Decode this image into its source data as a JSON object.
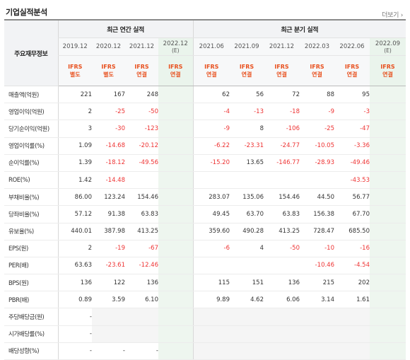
{
  "title": "기업실적분석",
  "more_link": "더보기",
  "more_icon": "chevron-right-icon",
  "row_header": "주요재무정보",
  "annual_header": "최근 연간 실적",
  "quarter_header": "최근 분기 실적",
  "annual_periods": [
    {
      "period": "2019.12",
      "ifrs": "IFRS",
      "basis": "별도",
      "estimate": false
    },
    {
      "period": "2020.12",
      "ifrs": "IFRS",
      "basis": "별도",
      "estimate": false
    },
    {
      "period": "2021.12",
      "ifrs": "IFRS",
      "basis": "연결",
      "estimate": false
    },
    {
      "period": "2022.12",
      "est_label": "(E)",
      "ifrs": "IFRS",
      "basis": "연결",
      "estimate": true
    }
  ],
  "quarter_periods": [
    {
      "period": "2021.06",
      "ifrs": "IFRS",
      "basis": "연결",
      "estimate": false
    },
    {
      "period": "2021.09",
      "ifrs": "IFRS",
      "basis": "연결",
      "estimate": false
    },
    {
      "period": "2021.12",
      "ifrs": "IFRS",
      "basis": "연결",
      "estimate": false
    },
    {
      "period": "2022.03",
      "ifrs": "IFRS",
      "basis": "연결",
      "estimate": false
    },
    {
      "period": "2022.06",
      "ifrs": "IFRS",
      "basis": "연결",
      "estimate": false
    },
    {
      "period": "2022.09",
      "est_label": "(E)",
      "ifrs": "IFRS",
      "basis": "연결",
      "estimate": true
    }
  ],
  "colors": {
    "negative": "#e33333",
    "ifrs": "#e8501e",
    "estimate_bg": "#eef6ef"
  },
  "rows": [
    {
      "label": "매출액(억원)",
      "annual": [
        "221",
        "167",
        "248",
        ""
      ],
      "quarter": [
        "62",
        "56",
        "72",
        "88",
        "95",
        ""
      ]
    },
    {
      "label": "영업이익(억원)",
      "annual": [
        "2",
        "-25",
        "-50",
        ""
      ],
      "quarter": [
        "-4",
        "-13",
        "-18",
        "-9",
        "-3",
        ""
      ]
    },
    {
      "label": "당기순이익(억원)",
      "annual": [
        "3",
        "-30",
        "-123",
        ""
      ],
      "quarter": [
        "-9",
        "8",
        "-106",
        "-25",
        "-47",
        ""
      ]
    },
    {
      "label": "영업이익률(%)",
      "annual": [
        "1.09",
        "-14.68",
        "-20.12",
        ""
      ],
      "quarter": [
        "-6.22",
        "-23.31",
        "-24.77",
        "-10.05",
        "-3.36",
        ""
      ]
    },
    {
      "label": "순이익률(%)",
      "annual": [
        "1.39",
        "-18.12",
        "-49.56",
        ""
      ],
      "quarter": [
        "-15.20",
        "13.65",
        "-146.77",
        "-28.93",
        "-49.46",
        ""
      ]
    },
    {
      "label": "ROE(%)",
      "annual": [
        "1.42",
        "-14.48",
        "",
        ""
      ],
      "quarter": [
        "",
        "",
        "",
        "",
        "-43.53",
        ""
      ]
    },
    {
      "label": "부채비율(%)",
      "annual": [
        "86.00",
        "123.24",
        "154.46",
        ""
      ],
      "quarter": [
        "283.07",
        "135.06",
        "154.46",
        "44.50",
        "56.77",
        ""
      ]
    },
    {
      "label": "당좌비율(%)",
      "annual": [
        "57.12",
        "91.38",
        "63.83",
        ""
      ],
      "quarter": [
        "49.45",
        "63.70",
        "63.83",
        "156.38",
        "67.70",
        ""
      ]
    },
    {
      "label": "유보율(%)",
      "annual": [
        "440.01",
        "387.98",
        "413.25",
        ""
      ],
      "quarter": [
        "359.60",
        "490.28",
        "413.25",
        "728.47",
        "685.50",
        ""
      ]
    },
    {
      "label": "EPS(원)",
      "annual": [
        "2",
        "-19",
        "-67",
        ""
      ],
      "quarter": [
        "-6",
        "4",
        "-50",
        "-10",
        "-16",
        ""
      ]
    },
    {
      "label": "PER(배)",
      "annual": [
        "63.63",
        "-23.61",
        "-12.46",
        ""
      ],
      "quarter": [
        "",
        "",
        "",
        "-10.46",
        "-4.54",
        ""
      ]
    },
    {
      "label": "BPS(원)",
      "annual": [
        "136",
        "122",
        "136",
        ""
      ],
      "quarter": [
        "115",
        "151",
        "136",
        "215",
        "202",
        ""
      ]
    },
    {
      "label": "PBR(배)",
      "annual": [
        "0.89",
        "3.59",
        "6.10",
        ""
      ],
      "quarter": [
        "9.89",
        "4.62",
        "6.06",
        "3.14",
        "1.61",
        ""
      ]
    },
    {
      "label": "주당배당금(원)",
      "annual": [
        "-",
        "",
        "",
        ""
      ],
      "quarter": [
        "",
        "",
        "",
        "",
        "",
        ""
      ],
      "grey": true
    },
    {
      "label": "시가배당률(%)",
      "annual": [
        "-",
        "",
        "",
        ""
      ],
      "quarter": [
        "",
        "",
        "",
        "",
        "",
        ""
      ],
      "grey": true
    },
    {
      "label": "배당성향(%)",
      "annual": [
        "-",
        "-",
        "-",
        ""
      ],
      "quarter": [
        "",
        "",
        "",
        "",
        "",
        ""
      ],
      "grey": true
    }
  ]
}
